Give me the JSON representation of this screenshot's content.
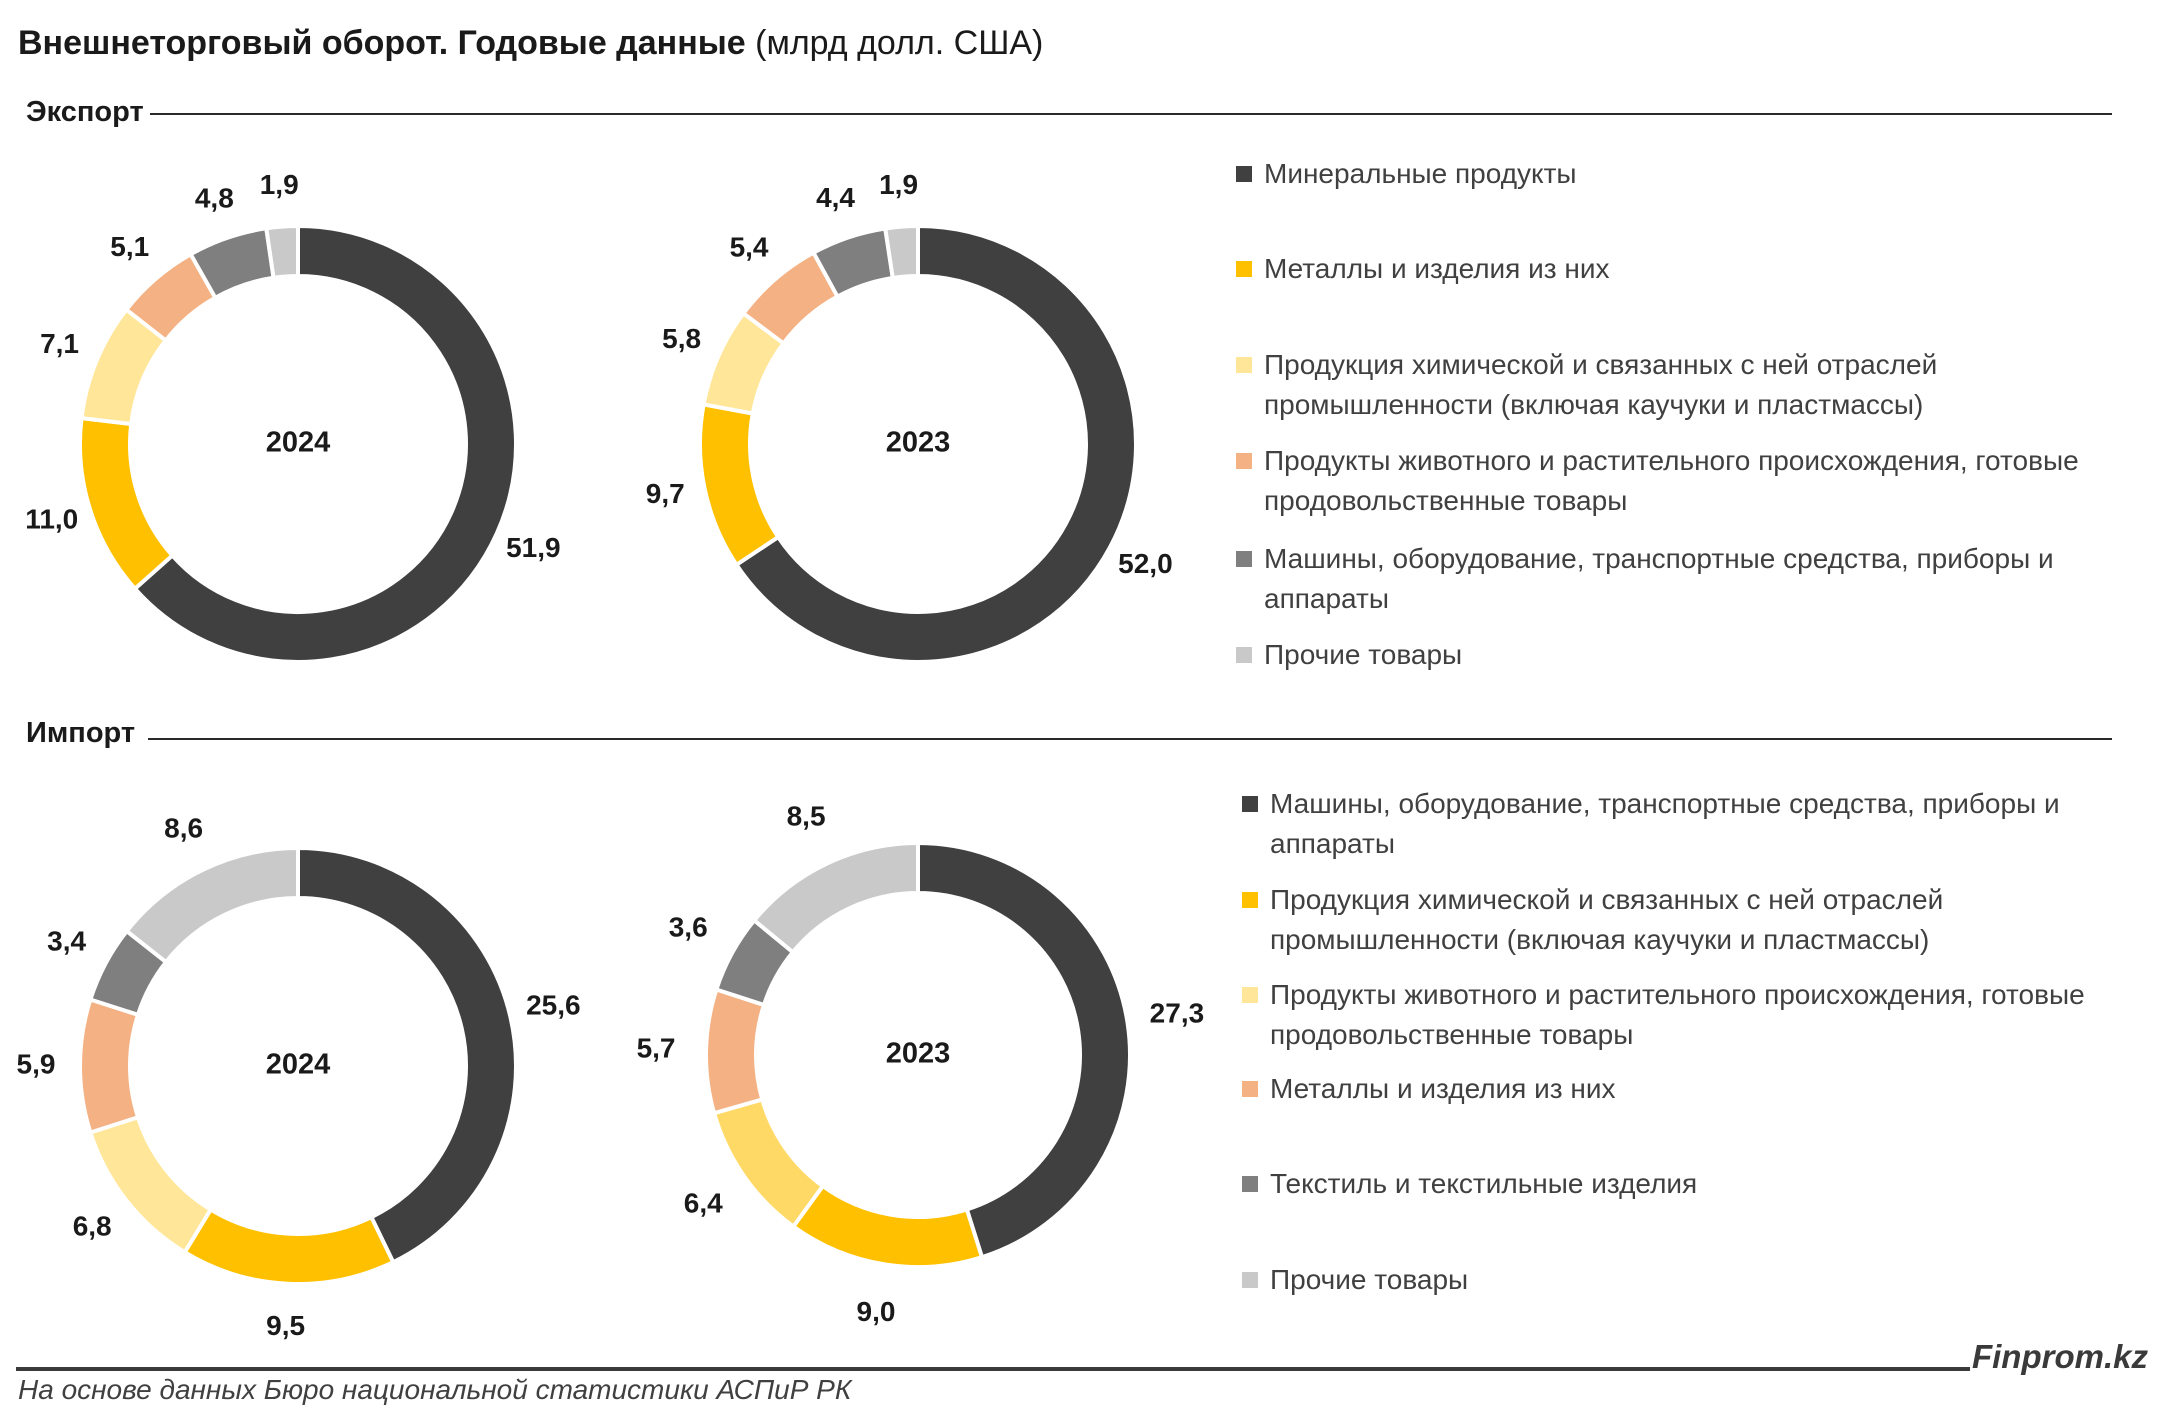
{
  "title": {
    "bold": "Внешнеторговый оборот. Годовые данные",
    "unit": "(млрд долл. США)"
  },
  "sections": {
    "export_label": "Экспорт",
    "import_label": "Импорт"
  },
  "colors": {
    "dark": "#404040",
    "yellow": "#FFC000",
    "light_yellow": "#FFE699",
    "salmon": "#F4B183",
    "gray": "#7F7F7F",
    "light_gray": "#C9C9C9",
    "import_light_yellow": "#FFD966"
  },
  "legends": {
    "export": [
      {
        "label": "Минеральные продукты",
        "color": "#404040"
      },
      {
        "label": "Металлы и изделия из них",
        "color": "#FFC000"
      },
      {
        "label": "Продукция химической и связанных с ней отраслей промышленности (включая каучуки и пластмассы)",
        "color": "#FFE699"
      },
      {
        "label": "Продукты животного и растительного происхождения, готовые продовольственные товары",
        "color": "#F4B183"
      },
      {
        "label": "Машины, оборудование, транспортные средства, приборы и аппараты",
        "color": "#7F7F7F"
      },
      {
        "label": "Прочие товары",
        "color": "#C9C9C9"
      }
    ],
    "import": [
      {
        "label": "Машины, оборудование, транспортные средства, приборы и аппараты",
        "color": "#404040"
      },
      {
        "label": "Продукция химической и связанных с ней отраслей промышленности (включая каучуки и пластмассы)",
        "color": "#FFC000"
      },
      {
        "label": "Продукты животного и растительного происхождения, готовые продовольственные товары",
        "color": "#FFE699"
      },
      {
        "label": "Металлы и изделия из них",
        "color": "#F4B183"
      },
      {
        "label": "Текстиль и текстильные изделия",
        "color": "#7F7F7F"
      },
      {
        "label": "Прочие товары",
        "color": "#C9C9C9"
      }
    ]
  },
  "chart_data": [
    {
      "type": "pie",
      "variant": "donut",
      "section": "Экспорт",
      "center_label": "2024",
      "categories": [
        "Минеральные продукты",
        "Металлы и изделия из них",
        "Продукция химической и связанных с ней отраслей промышленности (включая каучуки и пластмассы)",
        "Продукты животного и растительного происхождения, готовые продовольственные товары",
        "Машины, оборудование, транспортные средства, приборы и аппараты",
        "Прочие товары"
      ],
      "values": [
        51.9,
        11.0,
        7.1,
        5.1,
        4.8,
        1.9
      ],
      "value_labels": [
        "51,9",
        "11,0",
        "7,1",
        "5,1",
        "4,8",
        "1,9"
      ],
      "colors": [
        "#404040",
        "#FFC000",
        "#FFE699",
        "#F4B183",
        "#7F7F7F",
        "#C9C9C9"
      ]
    },
    {
      "type": "pie",
      "variant": "donut",
      "section": "Экспорт",
      "center_label": "2023",
      "categories": [
        "Минеральные продукты",
        "Металлы и изделия из них",
        "Продукция химической и связанных с ней отраслей промышленности (включая каучуки и пластмассы)",
        "Продукты животного и растительного происхождения, готовые продовольственные товары",
        "Машины, оборудование, транспортные средства, приборы и аппараты",
        "Прочие товары"
      ],
      "values": [
        52.0,
        9.7,
        5.8,
        5.4,
        4.4,
        1.9
      ],
      "value_labels": [
        "52,0",
        "9,7",
        "5,8",
        "5,4",
        "4,4",
        "1,9"
      ],
      "colors": [
        "#404040",
        "#FFC000",
        "#FFE699",
        "#F4B183",
        "#7F7F7F",
        "#C9C9C9"
      ]
    },
    {
      "type": "pie",
      "variant": "donut",
      "section": "Импорт",
      "center_label": "2024",
      "categories": [
        "Машины, оборудование, транспортные средства, приборы и аппараты",
        "Продукция химической и связанных с ней отраслей промышленности (включая каучуки и пластмассы)",
        "Продукты животного и растительного происхождения, готовые продовольственные товары",
        "Металлы и изделия из них",
        "Текстиль и текстильные изделия",
        "Прочие товары"
      ],
      "values": [
        25.6,
        9.5,
        6.8,
        5.9,
        3.4,
        8.6
      ],
      "value_labels": [
        "25,6",
        "9,5",
        "6,8",
        "5,9",
        "3,4",
        "8,6"
      ],
      "colors": [
        "#404040",
        "#FFC000",
        "#FFE699",
        "#F4B183",
        "#7F7F7F",
        "#C9C9C9"
      ]
    },
    {
      "type": "pie",
      "variant": "donut",
      "section": "Импорт",
      "center_label": "2023",
      "categories": [
        "Машины, оборудование, транспортные средства, приборы и аппараты",
        "Продукция химической и связанных с ней отраслей промышленности (включая каучуки и пластмассы)",
        "Продукты животного и растительного происхождения, готовые продовольственные товары",
        "Металлы и изделия из них",
        "Текстиль и текстильные изделия",
        "Прочие товары"
      ],
      "values": [
        27.3,
        9.0,
        6.4,
        5.7,
        3.6,
        8.5
      ],
      "value_labels": [
        "27,3",
        "9,0",
        "6,4",
        "5,7",
        "3,6",
        "8,5"
      ],
      "colors": [
        "#404040",
        "#FFC000",
        "#FFD966",
        "#F4B183",
        "#7F7F7F",
        "#C9C9C9"
      ]
    }
  ],
  "footer": {
    "source": "На основе данных Бюро национальной статистики АСПиР РК",
    "brand": "Finprom.kz"
  }
}
